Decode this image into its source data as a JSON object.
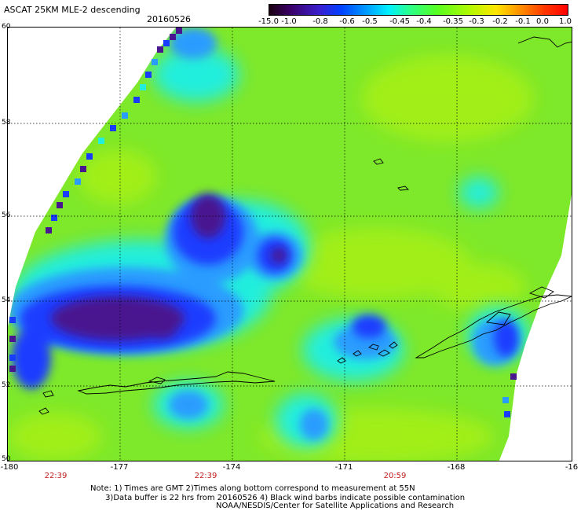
{
  "header": {
    "title": "ASCAT 25KM MLE-2 descending",
    "date": "20160526"
  },
  "colorbar": {
    "labels": [
      "-15.0",
      "-1.0",
      "-0.8",
      "-0.6",
      "-0.5",
      "-0.45",
      "-0.4",
      "-0.35",
      "-0.3",
      "-0.2",
      "-0.1",
      "0.0",
      "1.0"
    ]
  },
  "map": {
    "lat_labels": [
      "60",
      "58",
      "56",
      "54",
      "52",
      "50"
    ],
    "lon_labels": [
      "-180",
      "-177",
      "-174",
      "-171",
      "-168",
      "-16"
    ],
    "time_labels": [
      "22:39",
      "22:39",
      "20:59"
    ],
    "field_colors": {
      "background": "#7ee82a",
      "dark_purple": "#4a1690",
      "blue": "#1a3cff",
      "light_blue": "#2a9cff",
      "cyan": "#22eedd",
      "yellow_green": "#a8f018"
    }
  },
  "footer": {
    "note": "Note: 1) Times are GMT 2)Times along bottom correspond to measurement at 55N\n      3)Data buffer is 22 hrs from 20160526 4) Black wind barbs indicate possible contamination",
    "credit": "NOAA/NESDIS/Center for Satellite Applications and Research"
  }
}
